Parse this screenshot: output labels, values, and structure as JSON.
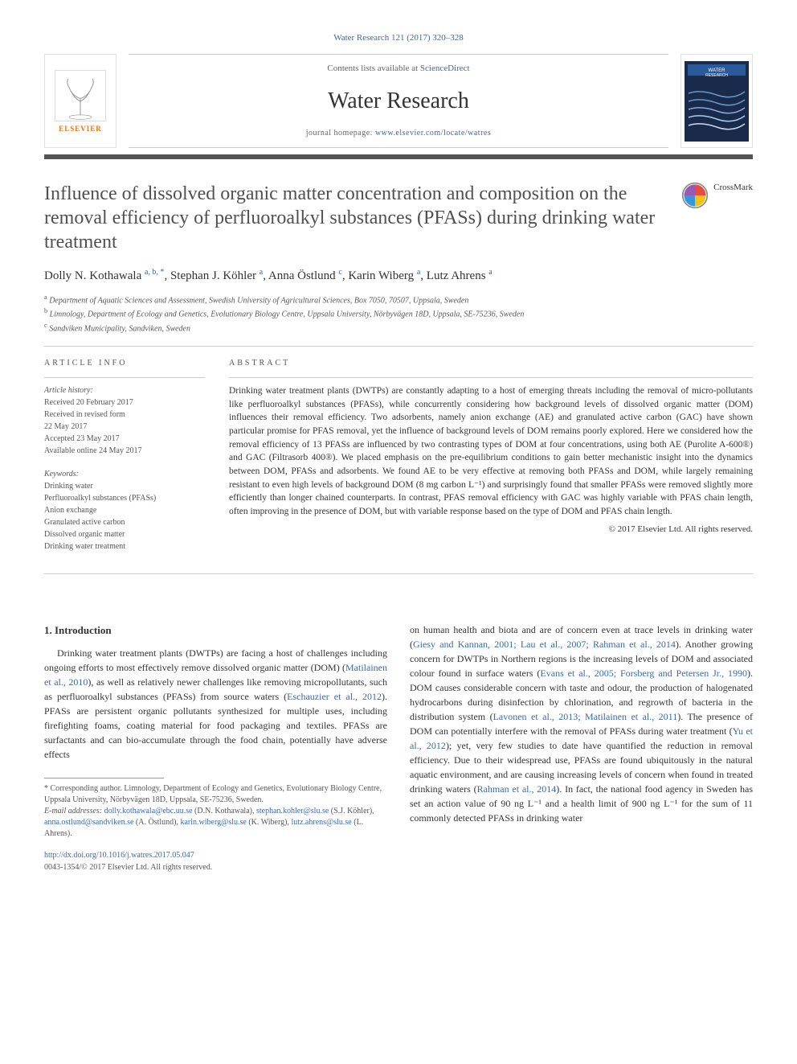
{
  "citation": "Water Research 121 (2017) 320–328",
  "masthead": {
    "contents_prefix": "Contents lists available at ",
    "contents_link": "ScienceDirect",
    "journal": "Water Research",
    "homepage_prefix": "journal homepage: ",
    "homepage_link": "www.elsevier.com/locate/watres",
    "publisher_name": "ELSEVIER"
  },
  "colors": {
    "link": "#3968b1",
    "elsevier_orange": "#ff6c00",
    "separator": "#555555",
    "text": "#333333",
    "muted": "#555555"
  },
  "article": {
    "title": "Influence of dissolved organic matter concentration and composition on the removal efficiency of perfluoroalkyl substances (PFASs) during drinking water treatment",
    "crossmark_label": "CrossMark"
  },
  "authors_html": "Dolly N. Kothawala <sup>a, b, *</sup>, Stephan J. Köhler <sup>a</sup>, Anna Östlund <sup>c</sup>, Karin Wiberg <sup>a</sup>, Lutz Ahrens <sup>a</sup>",
  "affiliations": [
    {
      "sup": "a",
      "text": "Department of Aquatic Sciences and Assessment, Swedish University of Agricultural Sciences, Box 7050, 70507, Uppsala, Sweden"
    },
    {
      "sup": "b",
      "text": "Limnology, Department of Ecology and Genetics, Evolutionary Biology Centre, Uppsala University, Nörbyvägen 18D, Uppsala, SE-75236, Sweden"
    },
    {
      "sup": "c",
      "text": "Sandviken Municipality, Sandviken, Sweden"
    }
  ],
  "info": {
    "heading": "ARTICLE INFO",
    "history_label": "Article history:",
    "history_lines": [
      "Received 20 February 2017",
      "Received in revised form",
      "22 May 2017",
      "Accepted 23 May 2017",
      "Available online 24 May 2017"
    ],
    "keywords_label": "Keywords:",
    "keywords": [
      "Drinking water",
      "Perfluoroalkyl substances (PFASs)",
      "Anion exchange",
      "Granulated active carbon",
      "Dissolved organic matter",
      "Drinking water treatment"
    ]
  },
  "abstract": {
    "heading": "ABSTRACT",
    "text": "Drinking water treatment plants (DWTPs) are constantly adapting to a host of emerging threats including the removal of micro-pollutants like perfluoroalkyl substances (PFASs), while concurrently considering how background levels of dissolved organic matter (DOM) influences their removal efficiency. Two adsorbents, namely anion exchange (AE) and granulated active carbon (GAC) have shown particular promise for PFAS removal, yet the influence of background levels of DOM remains poorly explored. Here we considered how the removal efficiency of 13 PFASs are influenced by two contrasting types of DOM at four concentrations, using both AE (Purolite A-600®) and GAC (Filtrasorb 400®). We placed emphasis on the pre-equilibrium conditions to gain better mechanistic insight into the dynamics between DOM, PFASs and adsorbents. We found AE to be very effective at removing both PFASs and DOM, while largely remaining resistant to even high levels of background DOM (8 mg carbon L⁻¹) and surprisingly found that smaller PFASs were removed slightly more efficiently than longer chained counterparts. In contrast, PFAS removal efficiency with GAC was highly variable with PFAS chain length, often improving in the presence of DOM, but with variable response based on the type of DOM and PFAS chain length.",
    "copyright": "© 2017 Elsevier Ltd. All rights reserved."
  },
  "body": {
    "section_heading": "1.  Introduction",
    "left_para": "Drinking water treatment plants (DWTPs) are facing a host of challenges including ongoing efforts to most effectively remove dissolved organic matter (DOM) (Matilainen et al., 2010), as well as relatively newer challenges like removing micropollutants, such as perfluoroalkyl substances (PFASs) from source waters (Eschauzier et al., 2012). PFASs are persistent organic pollutants synthesized for multiple uses, including firefighting foams, coating material for food packaging and textiles. PFASs are surfactants and can bio-accumulate through the food chain, potentially have adverse effects",
    "right_para": "on human health and biota and are of concern even at trace levels in drinking water (Giesy and Kannan, 2001; Lau et al., 2007; Rahman et al., 2014). Another growing concern for DWTPs in Northern regions is the increasing levels of DOM and associated colour found in surface waters (Evans et al., 2005; Forsberg and Petersen Jr., 1990). DOM causes considerable concern with taste and odour, the production of halogenated hydrocarbons during disinfection by chlorination, and regrowth of bacteria in the distribution system (Lavonen et al., 2013; Matilainen et al., 2011). The presence of DOM can potentially interfere with the removal of PFASs during water treatment (Yu et al., 2012); yet, very few studies to date have quantified the reduction in removal efficiency. Due to their widespread use, PFASs are found ubiquitously in the natural aquatic environment, and are causing increasing levels of concern when found in treated drinking waters (Rahman et al., 2014). In fact, the national food agency in Sweden has set an action value of 90 ng L⁻¹ and a health limit of 900 ng L⁻¹ for the sum of 11 commonly detected PFASs in drinking water"
  },
  "footnotes": {
    "corr": "* Corresponding author. Limnology, Department of Ecology and Genetics, Evolutionary Biology Centre, Uppsala University, Nörbyvägen 18D, Uppsala, SE-75236, Sweden.",
    "email_label": "E-mail addresses:",
    "emails": " dolly.kothawala@ebc.uu.se (D.N. Kothawala), stephan.kohler@slu.se (S.J. Köhler), anna.ostlund@sandviken.se (A. Östlund), karin.wiberg@slu.se (K. Wiberg), lutz.ahrens@slu.se (L. Ahrens)."
  },
  "doi": {
    "url": "http://dx.doi.org/10.1016/j.watres.2017.05.047",
    "issn_line": "0043-1354/© 2017 Elsevier Ltd. All rights reserved."
  }
}
